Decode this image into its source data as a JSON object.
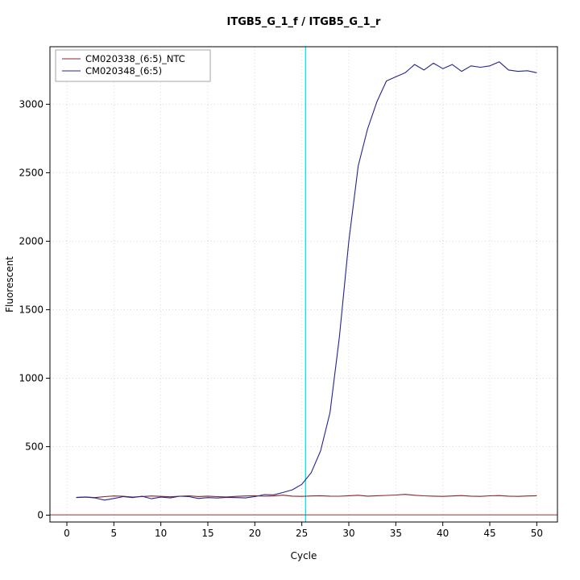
{
  "window": {
    "background": "#ffffff"
  },
  "chart_data": {
    "type": "line",
    "title": "ITGB5_G_1_f / ITGB5_G_1_r",
    "xlabel": "Cycle",
    "ylabel": "Fluorescent",
    "xlim": [
      -1.8,
      52.2
    ],
    "ylim": [
      -50,
      3420
    ],
    "x_ticks": [
      0,
      5,
      10,
      15,
      20,
      25,
      30,
      35,
      40,
      45,
      50
    ],
    "y_ticks": [
      0,
      500,
      1000,
      1500,
      2000,
      2500,
      3000
    ],
    "grid": true,
    "grid_color": "#d8d8d8",
    "plot_border_color": "#000000",
    "legend_position": "top-left",
    "threshold_cycle_line": {
      "x": 25.4,
      "color": "#00e5ee"
    },
    "baseline": {
      "y": 2,
      "color": "#8b3a3a"
    },
    "x": [
      1,
      2,
      3,
      4,
      5,
      6,
      7,
      8,
      9,
      10,
      11,
      12,
      13,
      14,
      15,
      16,
      17,
      18,
      19,
      20,
      21,
      22,
      23,
      24,
      25,
      26,
      27,
      28,
      29,
      30,
      31,
      32,
      33,
      34,
      35,
      36,
      37,
      38,
      39,
      40,
      41,
      42,
      43,
      44,
      45,
      46,
      47,
      48,
      49,
      50
    ],
    "series": [
      {
        "name": "CM020338_(6:5)_NTC",
        "color": "#8b2323",
        "values": [
          130,
          133,
          128,
          135,
          140,
          138,
          132,
          136,
          140,
          137,
          134,
          138,
          141,
          136,
          139,
          135,
          133,
          137,
          140,
          142,
          138,
          140,
          146,
          139,
          137,
          140,
          142,
          139,
          138,
          142,
          145,
          139,
          142,
          144,
          147,
          152,
          145,
          141,
          139,
          137,
          140,
          143,
          139,
          137,
          141,
          143,
          139,
          137,
          140,
          142
        ]
      },
      {
        "name": "CM020348_(6:5)",
        "color": "#24248f",
        "values": [
          128,
          132,
          126,
          110,
          122,
          135,
          128,
          138,
          120,
          132,
          126,
          138,
          135,
          122,
          128,
          125,
          130,
          128,
          126,
          135,
          150,
          148,
          165,
          185,
          225,
          310,
          470,
          750,
          1300,
          2000,
          2550,
          2820,
          3020,
          3170,
          3200,
          3230,
          3290,
          3250,
          3300,
          3260,
          3290,
          3240,
          3280,
          3270,
          3280,
          3310,
          3250,
          3240,
          3245,
          3230
        ]
      }
    ]
  }
}
